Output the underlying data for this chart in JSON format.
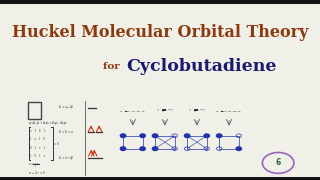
{
  "bg_color": "#f0efe8",
  "title_line1": "Huckel Molecular Orbital Theory",
  "title_line2_prefix": "for ",
  "title_line2_main": "Cyclobutadiene",
  "title_color": "#8B3A0F",
  "title_main_color": "#1a1a6e",
  "title_font_size": 11.5,
  "subtitle_prefix_size": 7.5,
  "subtitle_main_size": 12.5,
  "border_color": "#111111",
  "mo_blue": "#2233aa",
  "mo_circle_r": 0.01,
  "logo_color": "#9966bb",
  "logo_num_color": "#336633"
}
